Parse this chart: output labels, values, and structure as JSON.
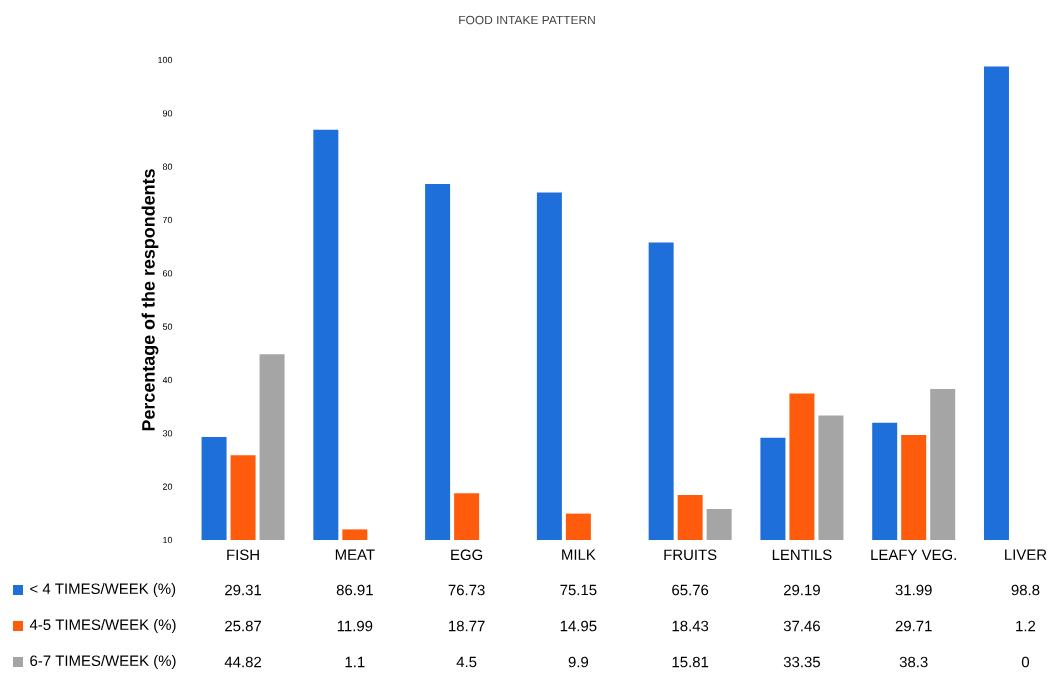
{
  "chart_data": {
    "type": "bar",
    "title": "FOOD INTAKE PATTERN",
    "ylabel": "Percentage of the respondents",
    "categories": [
      "FISH",
      "MEAT",
      "EGG",
      "MILK",
      "FRUITS",
      "LENTILS",
      "LEAFY VEG.",
      "LIVER"
    ],
    "series": [
      {
        "name": "< 4 TIMES/WEEK (%)",
        "color": "#1f6fdb",
        "values": [
          29.31,
          86.91,
          76.73,
          75.15,
          65.76,
          29.19,
          31.99,
          98.8
        ],
        "value_labels": [
          "29.31",
          "86.91",
          "76.73",
          "75.15",
          "65.76",
          "29.19",
          "31.99",
          "98.8"
        ]
      },
      {
        "name": "4-5 TIMES/WEEK (%)",
        "color": "#ff5b0c",
        "values": [
          25.87,
          11.99,
          18.77,
          14.95,
          18.43,
          37.46,
          29.71,
          null
        ],
        "value_labels": [
          "25.87",
          "11.99",
          "18.77",
          "14.95",
          "18.43",
          "37.46",
          "29.71",
          "1.2"
        ]
      },
      {
        "name": "6-7 TIMES/WEEK (%)",
        "color": "#a5a5a5",
        "values": [
          44.82,
          null,
          null,
          null,
          15.81,
          33.35,
          38.3,
          null
        ],
        "value_labels": [
          "44.82",
          "1.1",
          "4.5",
          "9.9",
          "15.81",
          "33.35",
          "38.3",
          "0"
        ]
      }
    ],
    "ylim": [
      10,
      100
    ],
    "yticks": [
      10,
      20,
      30,
      40,
      50,
      60,
      70,
      80,
      90,
      100
    ],
    "legend": "bottom",
    "grid": false
  }
}
